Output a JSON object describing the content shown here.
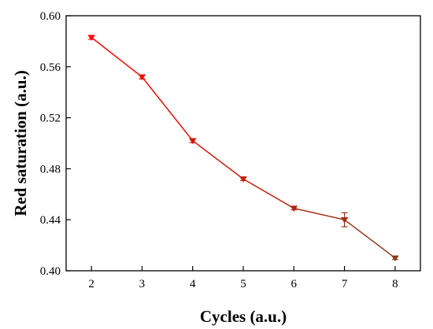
{
  "chart_data": {
    "type": "line",
    "xlabel": "Cycles (a.u.)",
    "ylabel": "Red saturation (a.u.)",
    "xlim": [
      1.5,
      8.5
    ],
    "ylim": [
      0.4,
      0.6
    ],
    "x_ticks": [
      2,
      3,
      4,
      5,
      6,
      7,
      8
    ],
    "y_ticks": [
      0.4,
      0.44,
      0.48,
      0.52,
      0.56,
      0.6
    ],
    "x_tick_labels": [
      "2",
      "3",
      "4",
      "5",
      "6",
      "7",
      "8"
    ],
    "y_tick_labels": [
      "0.40",
      "0.44",
      "0.48",
      "0.52",
      "0.56",
      "0.60"
    ],
    "grid": false,
    "legend": "none",
    "marker": "triangle-down",
    "line_color_gradient": [
      "#ff0000",
      "#8b3a1a"
    ],
    "series": [
      {
        "x": [
          2,
          3,
          4,
          5,
          6,
          7,
          8
        ],
        "values": [
          0.583,
          0.552,
          0.502,
          0.472,
          0.449,
          0.44,
          0.41
        ],
        "errors": [
          0.0015,
          0.0015,
          0.0015,
          0.0012,
          0.0012,
          0.0055,
          0.0012
        ]
      }
    ]
  }
}
